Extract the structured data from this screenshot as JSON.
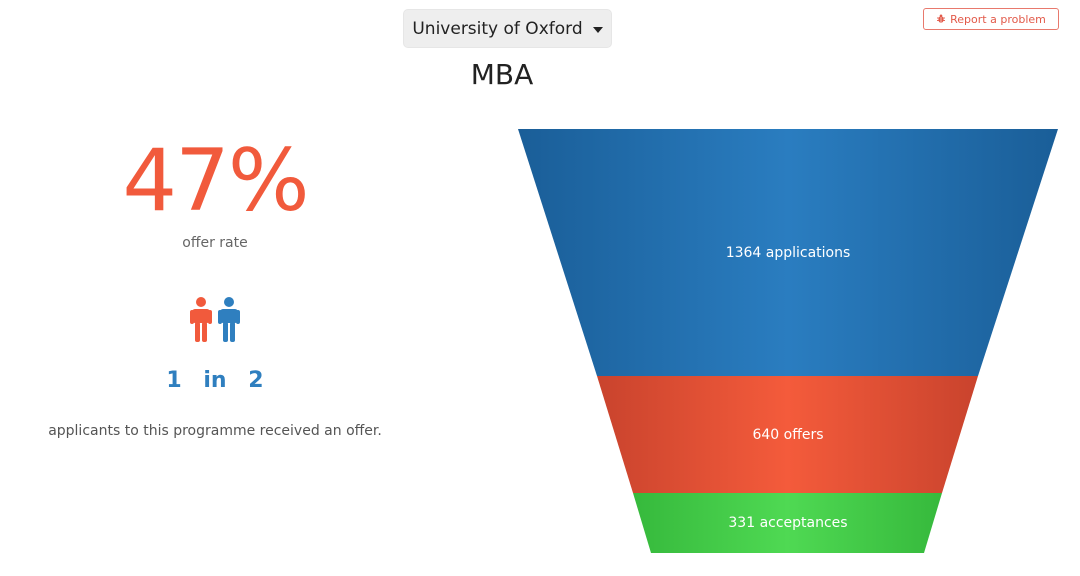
{
  "header": {
    "university": "University of Oxford",
    "report_label": "Report a problem"
  },
  "programme": "MBA",
  "stats": {
    "offer_rate": "47%",
    "offer_rate_label": "offer rate",
    "ratio_left": "1",
    "ratio_mid": "in",
    "ratio_right": "2",
    "caption": "applicants to this programme received an offer."
  },
  "funnel": {
    "stages": [
      {
        "value": 1364,
        "label": "1364 applications",
        "color": "#2472b3"
      },
      {
        "value": 640,
        "label": "640 offers",
        "color": "#f0573a"
      },
      {
        "value": 331,
        "label": "331 acceptances",
        "color": "#46d04c"
      }
    ]
  },
  "colors": {
    "accent_orange": "#f15a3c",
    "accent_blue": "#2f7fbf"
  },
  "icons": {
    "people": "people-icon",
    "report": "bug-icon"
  }
}
